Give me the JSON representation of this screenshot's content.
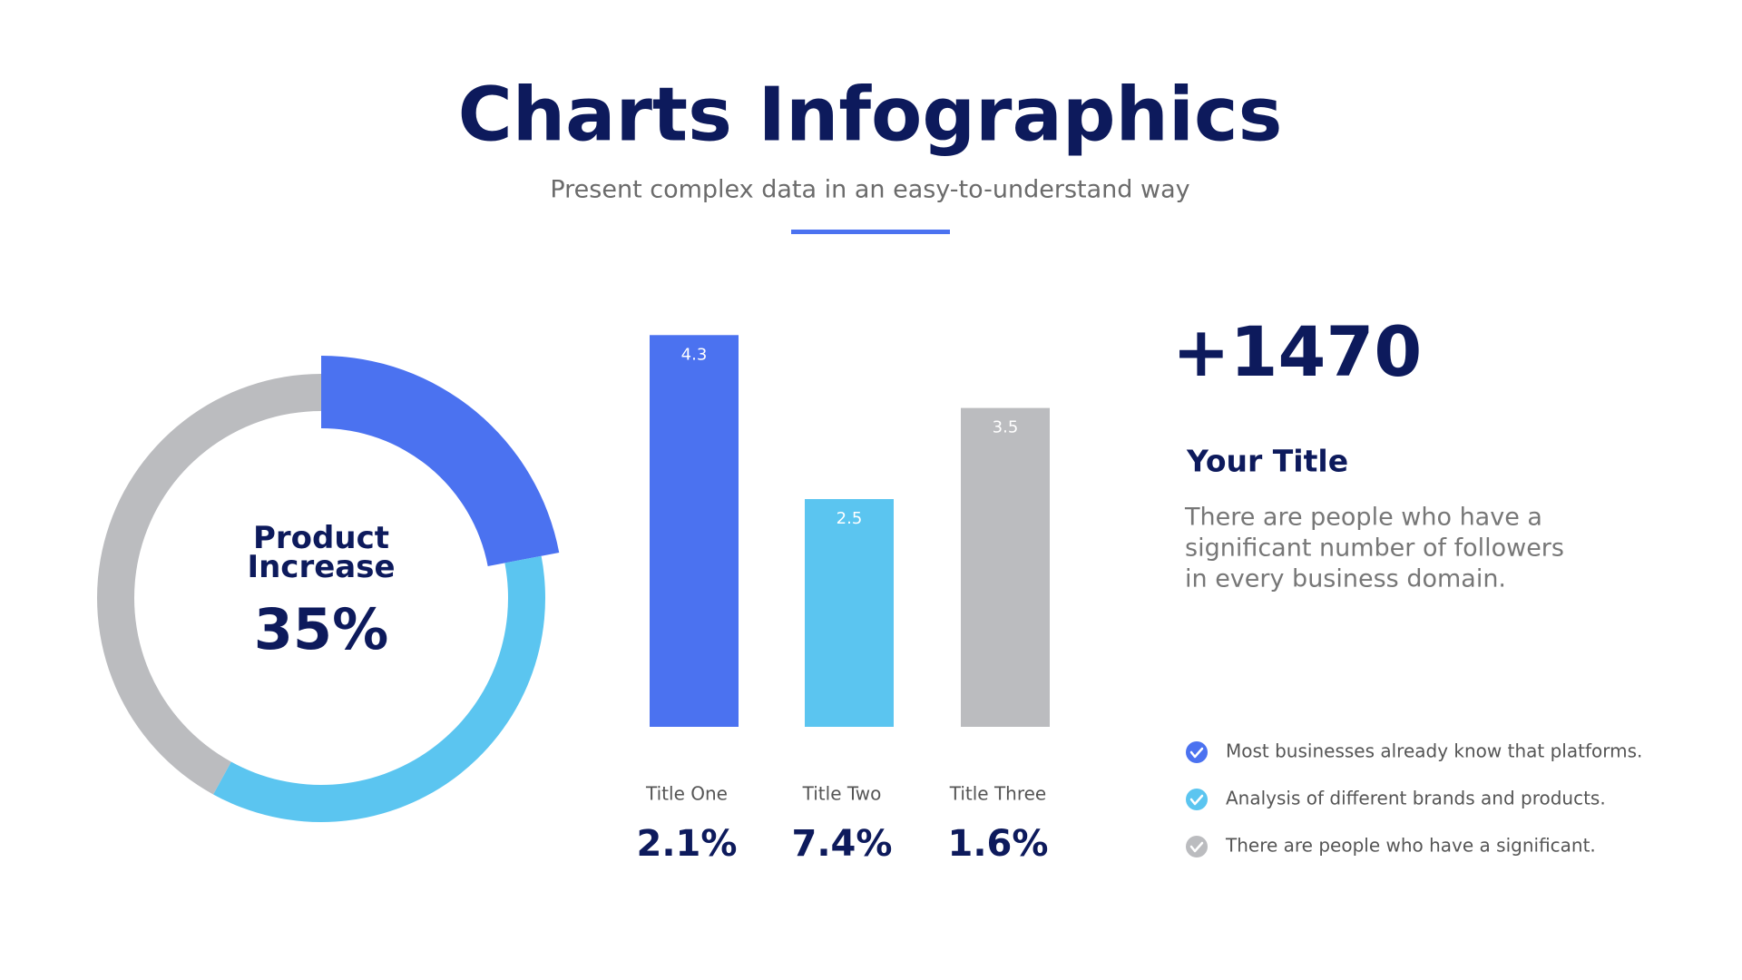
{
  "header": {
    "title": "Charts Infographics",
    "subtitle": "Present complex data in an easy-to-understand way"
  },
  "chart_data": [
    {
      "type": "donut",
      "center_label": "Product Increase",
      "center_value": "35%",
      "values": [
        22,
        36,
        42
      ],
      "colors": [
        "#4b72f0",
        "#5bc5f0",
        "#bbbcbf"
      ]
    },
    {
      "type": "bar",
      "categories": [
        "Title One",
        "Title Two",
        "Title Three"
      ],
      "values": [
        4.3,
        2.5,
        3.5
      ],
      "colors": [
        "#4b72f0",
        "#5bc5f0",
        "#bbbcbf"
      ],
      "secondary_labels": [
        "2.1%",
        "7.4%",
        "1.6%"
      ]
    }
  ],
  "stat": {
    "value": "+1470",
    "title": "Your Title",
    "lines": [
      "There are people who have a",
      "significant number of followers",
      "in every business domain."
    ]
  },
  "list": [
    {
      "text": "Most businesses already know that platforms.",
      "color": "#4b72f0"
    },
    {
      "text": "Analysis of different brands and products.",
      "color": "#5bc5f0"
    },
    {
      "text": "There are people who have a significant.",
      "color": "#bbbcbf"
    }
  ]
}
